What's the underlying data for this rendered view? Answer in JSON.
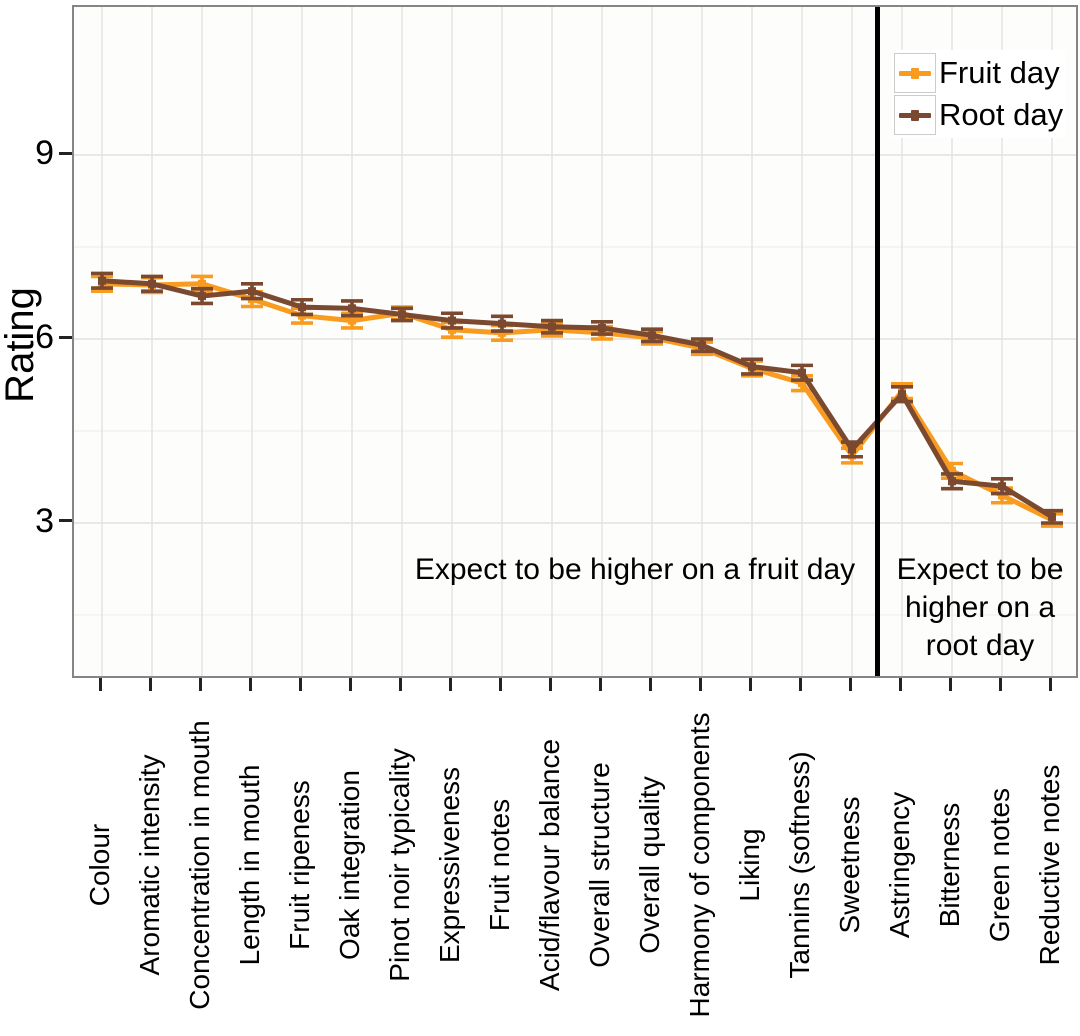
{
  "chart_data": {
    "type": "line",
    "title": "",
    "xlabel": "",
    "ylabel": "Rating",
    "y_ticks": [
      9,
      6,
      3
    ],
    "ylim": [
      1.0,
      10.6
    ],
    "y_major_gridlines": [
      3,
      6,
      9
    ],
    "y_minor_gridlines": [
      1.5,
      4.5,
      7.5
    ],
    "grid": "on",
    "legend_position": "top-right-inside",
    "categories": [
      "Colour",
      "Aromatic intensity",
      "Concentration in mouth",
      "Length in mouth",
      "Fruit ripeness",
      "Oak integration",
      "Pinot noir typicality",
      "Expressiveness",
      "Fruit notes",
      "Acid/flavour balance",
      "Overall structure",
      "Overall quality",
      "Harmony of components",
      "Liking",
      "Tannins (softness)",
      "Sweetness",
      "Astringency",
      "Bitterness",
      "Green notes",
      "Reductive notes"
    ],
    "series": [
      {
        "name": "Fruit day",
        "color": "#F89B1F",
        "values": [
          6.9,
          6.88,
          6.9,
          6.65,
          6.38,
          6.3,
          6.42,
          6.15,
          6.1,
          6.15,
          6.1,
          6.02,
          5.85,
          5.52,
          5.28,
          4.1,
          5.15,
          3.85,
          3.45,
          3.05
        ],
        "errors": [
          0.12,
          0.12,
          0.12,
          0.12,
          0.12,
          0.12,
          0.1,
          0.12,
          0.12,
          0.1,
          0.1,
          0.1,
          0.1,
          0.12,
          0.12,
          0.12,
          0.12,
          0.12,
          0.12,
          0.1
        ]
      },
      {
        "name": "Root day",
        "color": "#7A4930",
        "values": [
          6.95,
          6.9,
          6.7,
          6.78,
          6.52,
          6.5,
          6.4,
          6.3,
          6.25,
          6.2,
          6.18,
          6.06,
          5.9,
          5.55,
          5.45,
          4.2,
          5.1,
          3.68,
          3.6,
          3.1
        ],
        "errors": [
          0.12,
          0.12,
          0.12,
          0.12,
          0.12,
          0.12,
          0.1,
          0.12,
          0.12,
          0.1,
          0.1,
          0.1,
          0.1,
          0.12,
          0.12,
          0.12,
          0.12,
          0.12,
          0.12,
          0.1
        ]
      }
    ],
    "divider_after_category": "Sweetness",
    "annotations": [
      "Expect to be higher on a fruit day",
      "Expect to be\nhigher on a\nroot day"
    ]
  },
  "annotations": {
    "fruit_note": "Expect to be higher on a fruit day",
    "root_note": "Expect to be\nhigher on a\nroot day"
  },
  "colors": {
    "fruit": "#F89B1F",
    "root": "#7A4930",
    "separator": "#000000",
    "grid_major": "#e2e2e0",
    "grid_minor": "#f1f1ee",
    "panel_border": "#858585",
    "tick": "#222222",
    "panel_background": "#fdfdfb"
  }
}
